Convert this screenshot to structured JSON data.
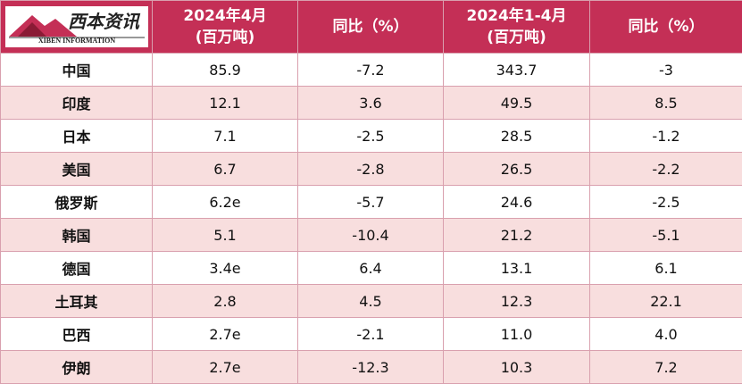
{
  "logo": {
    "name": "西本资讯",
    "subtitle": "XIBEN INFORMATION"
  },
  "table": {
    "header": [
      [
        "2024年4月",
        "(百万吨)"
      ],
      [
        "同比（%）"
      ],
      [
        "2024年1-4月",
        "(百万吨)"
      ],
      [
        "同比（%）"
      ]
    ],
    "rows": [
      [
        "中国",
        "85.9",
        "-7.2",
        "343.7",
        "-3"
      ],
      [
        "印度",
        "12.1",
        "3.6",
        "49.5",
        "8.5"
      ],
      [
        "日本",
        "7.1",
        "-2.5",
        "28.5",
        "-1.2"
      ],
      [
        "美国",
        "6.7",
        "-2.8",
        "26.5",
        "-2.2"
      ],
      [
        "俄罗斯",
        "6.2e",
        "-5.7",
        "24.6",
        "-2.5"
      ],
      [
        "韩国",
        "5.1",
        "-10.4",
        "21.2",
        "-5.1"
      ],
      [
        "德国",
        "3.4e",
        "6.4",
        "13.1",
        "6.1"
      ],
      [
        "土耳其",
        "2.8",
        "4.5",
        "12.3",
        "22.1"
      ],
      [
        "巴西",
        "2.7e",
        "-2.1",
        "11.0",
        "4.0"
      ],
      [
        "伊朗",
        "2.7e",
        "-12.3",
        "10.3",
        "7.2"
      ]
    ]
  }
}
